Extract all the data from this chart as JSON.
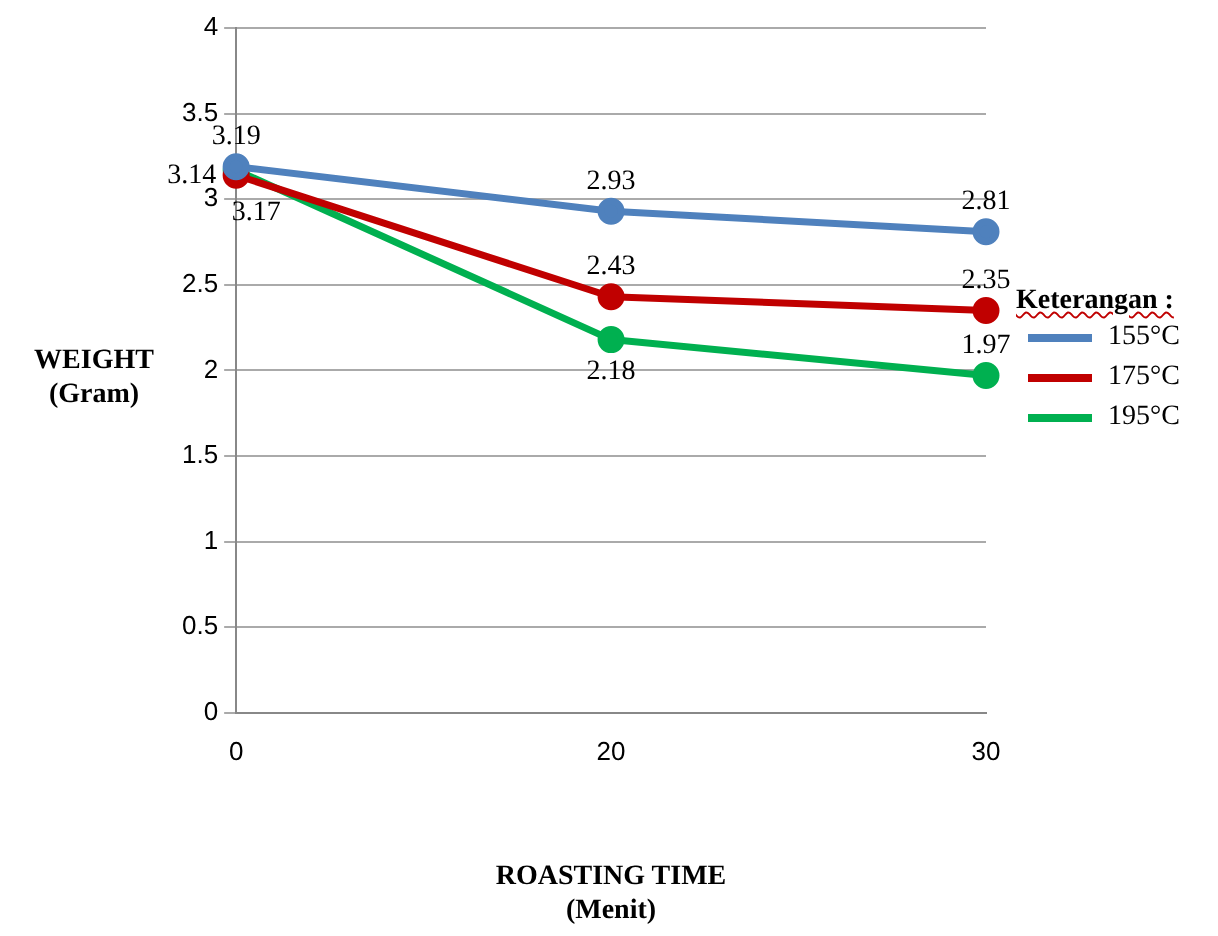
{
  "chart_data": {
    "type": "line",
    "xlabel": "ROASTING TIME\n(Menit)",
    "ylabel": "WEIGHT\n(Gram)",
    "legend_title": "Keterangan :",
    "categories": [
      "0",
      "20",
      "30"
    ],
    "series": [
      {
        "name": "155°C",
        "color": "#4f81bd",
        "values": [
          3.19,
          2.93,
          2.81
        ]
      },
      {
        "name": "175°C",
        "color": "#c00000",
        "values": [
          3.14,
          2.43,
          2.35
        ]
      },
      {
        "name": "195°C",
        "color": "#00b050",
        "values": [
          3.17,
          2.18,
          1.97
        ]
      }
    ],
    "ylim": [
      0,
      4
    ],
    "yticks": [
      0,
      0.5,
      1,
      1.5,
      2,
      2.5,
      3,
      3.5,
      4
    ],
    "grid": "y",
    "legend": "right",
    "marker": "circle",
    "line_style": "solid",
    "data_labels": true
  }
}
